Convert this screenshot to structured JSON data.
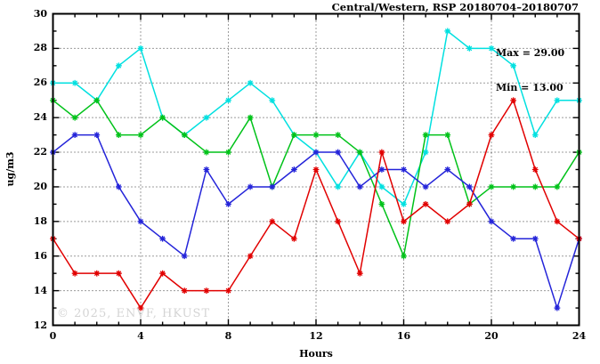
{
  "header": {
    "title": "Central/Western, RSP 20180704–20180707"
  },
  "annotation": {
    "max_label": "Max = 29.00",
    "min_label": "Min = 13.00"
  },
  "watermark": "© 2025, ENVF, HKUST",
  "chart_data": {
    "type": "line",
    "title": "Central/Western, RSP 20180704–20180707",
    "xlabel": "Hours",
    "ylabel": "ug/m3",
    "xlim": [
      0,
      24
    ],
    "ylim": [
      12,
      30
    ],
    "x_major_ticks": [
      0,
      4,
      8,
      12,
      16,
      20,
      24
    ],
    "y_major_ticks": [
      12,
      14,
      16,
      18,
      20,
      22,
      24,
      26,
      28,
      30
    ],
    "minor_tick_step_x": 1,
    "minor_tick_step_y": 1,
    "grid": "dotted",
    "legend_position": "none",
    "marker": "asterisk-star",
    "annotations": [
      "Max = 29.00",
      "Min = 13.00"
    ],
    "x": [
      0,
      1,
      2,
      3,
      4,
      5,
      6,
      7,
      8,
      9,
      10,
      11,
      12,
      13,
      14,
      15,
      16,
      17,
      18,
      19,
      20,
      21,
      22,
      23,
      24
    ],
    "series": [
      {
        "name": "cyan",
        "color": "#00e0e0",
        "values": [
          26,
          26,
          25,
          27,
          28,
          24,
          23,
          24,
          25,
          26,
          25,
          23,
          22,
          20,
          22,
          20,
          19,
          22,
          29,
          28,
          28,
          27,
          23,
          25,
          25
        ]
      },
      {
        "name": "green",
        "color": "#00c219",
        "values": [
          25,
          24,
          25,
          23,
          23,
          24,
          23,
          22,
          22,
          24,
          20,
          23,
          23,
          23,
          22,
          19,
          16,
          23,
          23,
          19,
          20,
          20,
          20,
          20,
          22
        ]
      },
      {
        "name": "blue",
        "color": "#2424d9",
        "values": [
          22,
          23,
          23,
          20,
          18,
          17,
          16,
          21,
          19,
          20,
          20,
          21,
          22,
          22,
          20,
          21,
          21,
          20,
          21,
          20,
          18,
          17,
          17,
          13,
          17
        ]
      },
      {
        "name": "red",
        "color": "#e10000",
        "values": [
          17,
          15,
          15,
          15,
          13,
          15,
          14,
          14,
          14,
          16,
          18,
          17,
          21,
          18,
          15,
          22,
          18,
          19,
          18,
          19,
          23,
          25,
          21,
          18,
          17
        ]
      }
    ]
  },
  "layout_colors": {
    "frame": "#000000",
    "grid": "#3a3a3a",
    "background": "#ffffff"
  }
}
